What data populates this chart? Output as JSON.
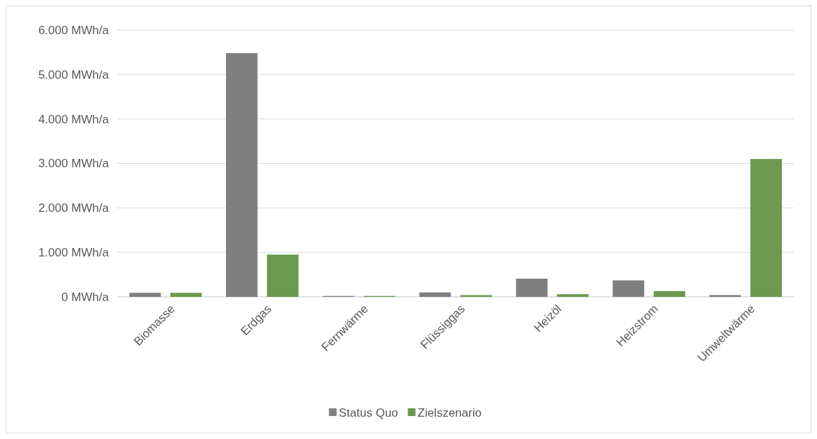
{
  "chart_data": {
    "type": "bar",
    "categories": [
      "Biomasse",
      "Erdgas",
      "Fernwärme",
      "Flüssiggas",
      "Heizöl",
      "Heizstrom",
      "Umweltwärme"
    ],
    "series": [
      {
        "name": "Status Quo",
        "color": "#7f7f7f",
        "values": [
          90,
          5480,
          20,
          100,
          410,
          370,
          40
        ]
      },
      {
        "name": "Zielszenario",
        "color": "#6a994f",
        "values": [
          90,
          950,
          20,
          40,
          60,
          130,
          3100
        ]
      }
    ],
    "ylim": [
      0,
      6000
    ],
    "yticks": [
      {
        "value": 0,
        "label": "0 MWh/a"
      },
      {
        "value": 1000,
        "label": "1.000 MWh/a"
      },
      {
        "value": 2000,
        "label": "2.000 MWh/a"
      },
      {
        "value": 3000,
        "label": "3.000 MWh/a"
      },
      {
        "value": 4000,
        "label": "4.000 MWh/a"
      },
      {
        "value": 5000,
        "label": "5.000 MWh/a"
      },
      {
        "value": 6000,
        "label": "6.000 MWh/a"
      }
    ],
    "grid": "y",
    "legend": "bottom"
  }
}
